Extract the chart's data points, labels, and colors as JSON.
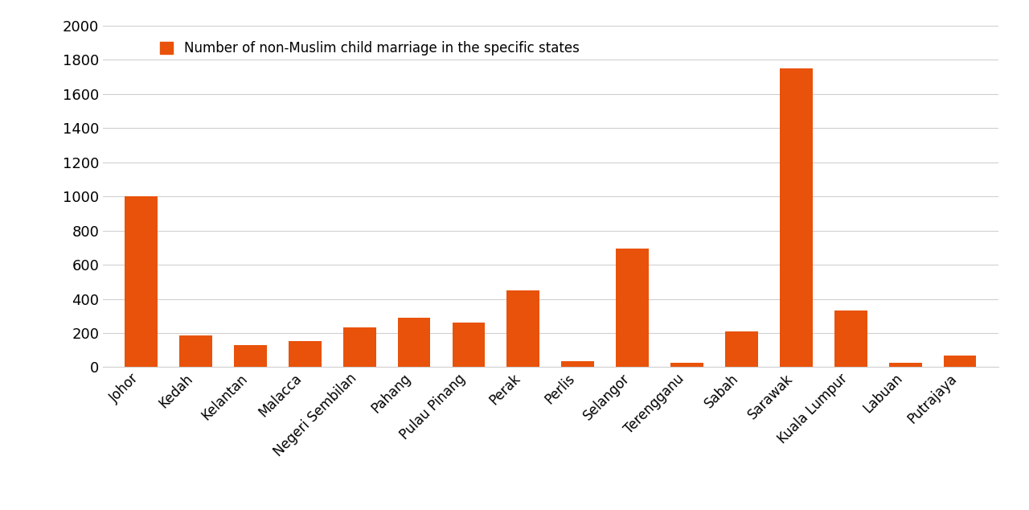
{
  "categories": [
    "Johor",
    "Kedah",
    "Kelantan",
    "Malacca",
    "Negeri Sembilan",
    "Pahang",
    "Pulau Pinang",
    "Perak",
    "Perlis",
    "Selangor",
    "Terengganu",
    "Sabah",
    "Sarawak",
    "Kuala Lumpur",
    "Labuan",
    "Putrajaya"
  ],
  "values": [
    1000,
    185,
    130,
    155,
    235,
    290,
    260,
    450,
    35,
    695,
    25,
    210,
    1750,
    330,
    25,
    70
  ],
  "bar_color": "#E8520A",
  "legend_label": "Number of non-Muslim child marriage in the specific states",
  "ylim": [
    0,
    2000
  ],
  "yticks": [
    0,
    200,
    400,
    600,
    800,
    1000,
    1200,
    1400,
    1600,
    1800,
    2000
  ],
  "background_color": "#ffffff",
  "grid_color": "#d0d0d0",
  "tick_label_color": "#000000",
  "legend_marker_color": "#E8520A",
  "figsize": [
    12.8,
    6.34
  ],
  "dpi": 100
}
